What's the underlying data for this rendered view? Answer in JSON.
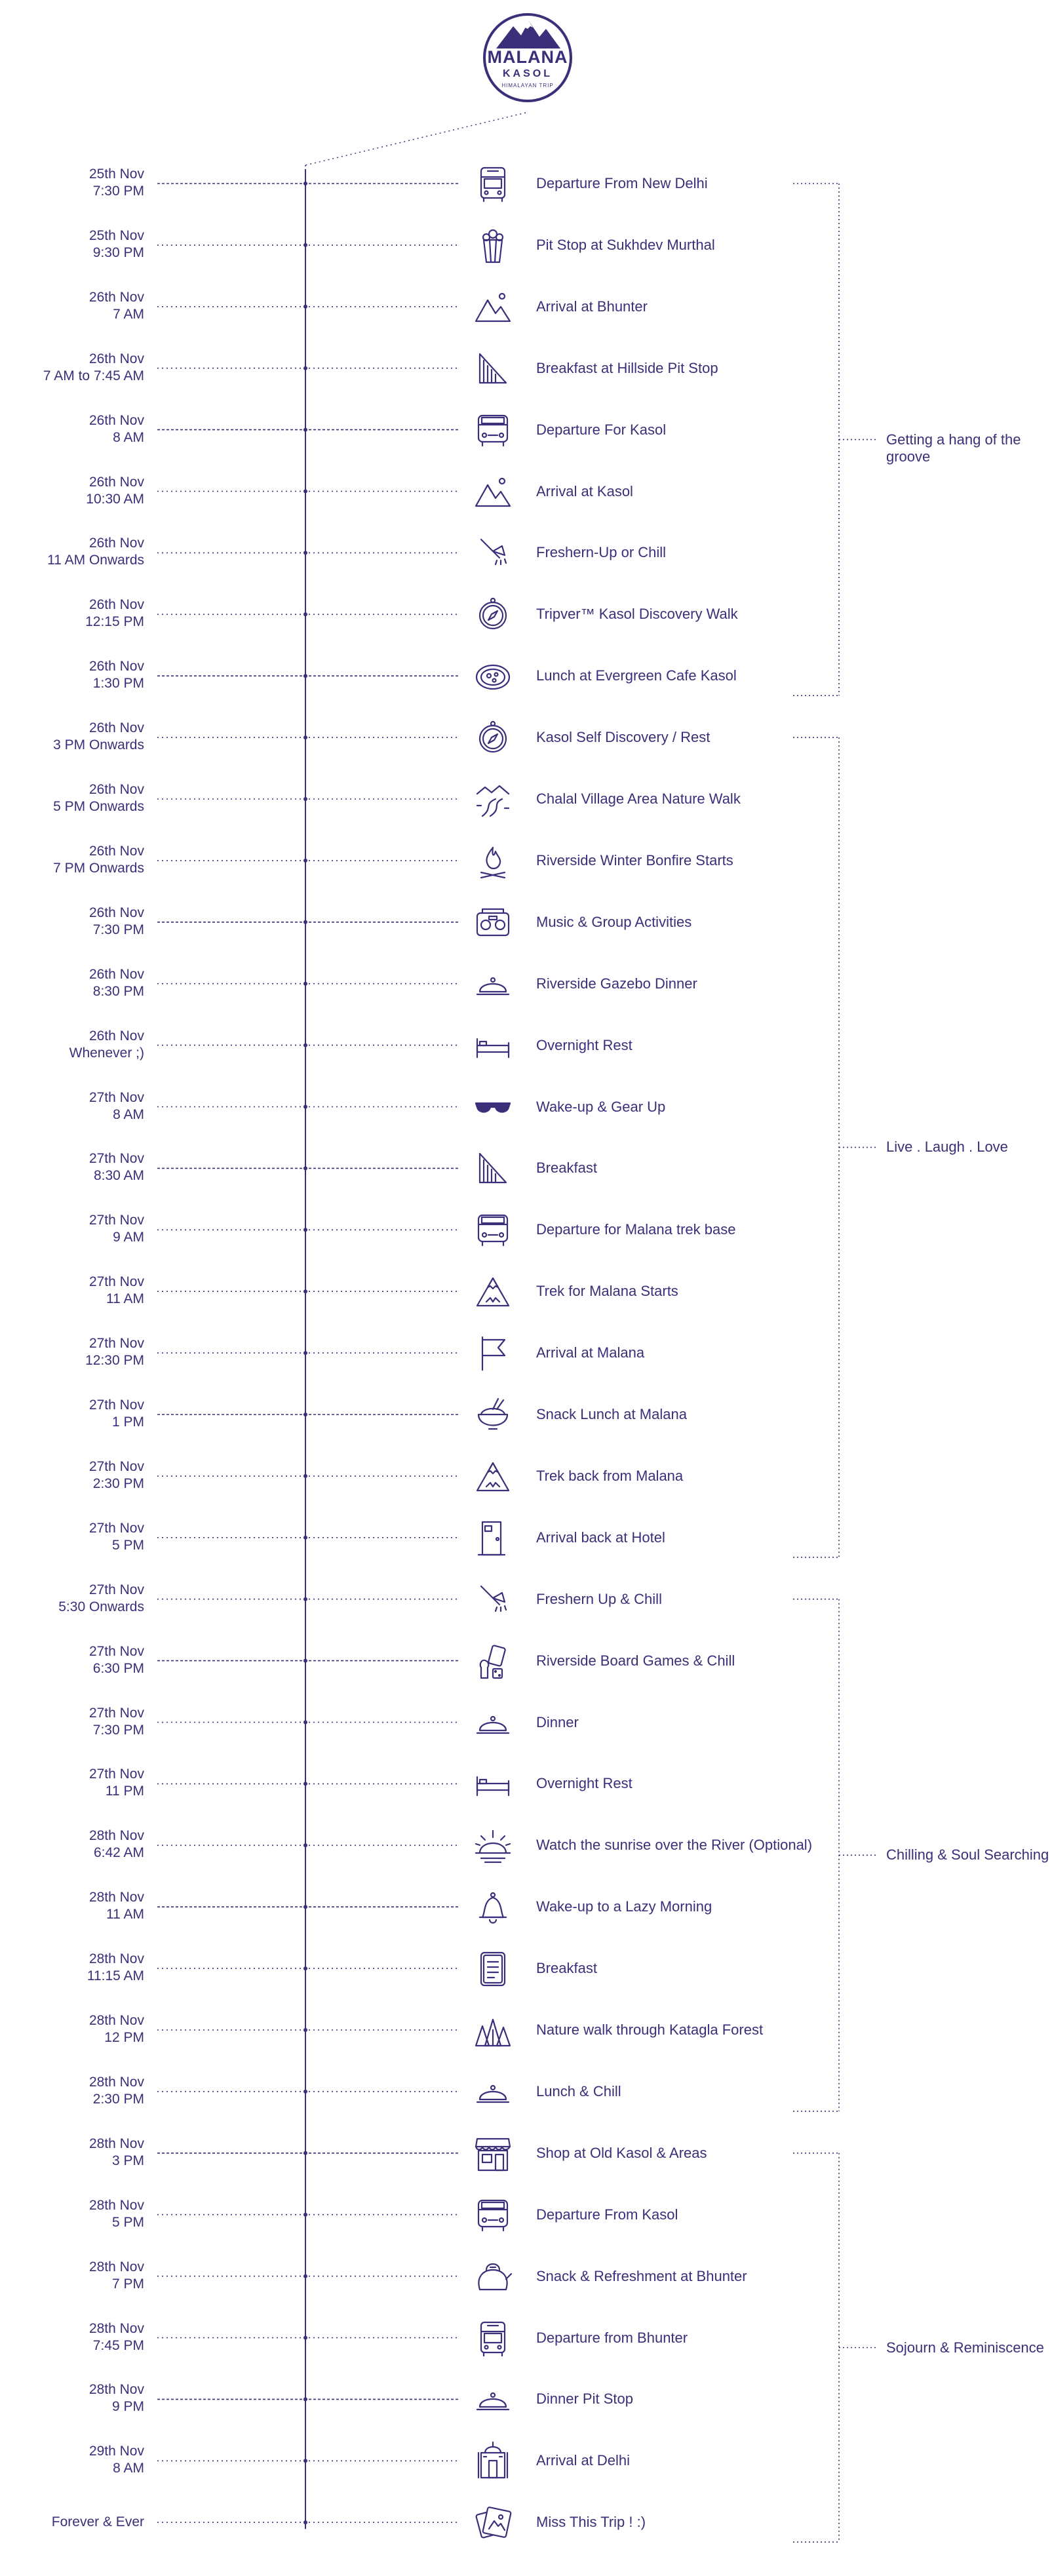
{
  "brand": {
    "title": "MALANA",
    "subtitle": "KASOL",
    "tagline": "HIMALAYAN TRIP",
    "color": "#3b2f7a"
  },
  "events": [
    {
      "date": "25th Nov",
      "time": "7:30 PM",
      "label": "Departure From New Delhi",
      "icon": "bus-icon"
    },
    {
      "date": "25th Nov",
      "time": "9:30 PM",
      "label": "Pit Stop at Sukhdev Murthal",
      "icon": "popcorn-icon"
    },
    {
      "date": "26th Nov",
      "time": "7 AM",
      "label": "Arrival at Bhunter",
      "icon": "mountains-icon"
    },
    {
      "date": "26th Nov",
      "time": "7 AM to 7:45 AM",
      "label": "Breakfast at Hillside Pit Stop",
      "icon": "sandwich-icon"
    },
    {
      "date": "26th Nov",
      "time": "8 AM",
      "label": "Departure For Kasol",
      "icon": "van-icon"
    },
    {
      "date": "26th Nov",
      "time": "10:30 AM",
      "label": "Arrival at Kasol",
      "icon": "mountains-icon"
    },
    {
      "date": "26th Nov",
      "time": "11 AM Onwards",
      "label": "Freshern-Up or Chill",
      "icon": "shower-icon"
    },
    {
      "date": "26th Nov",
      "time": "12:15 PM",
      "label": "Tripver™ Kasol Discovery Walk",
      "icon": "compass-icon"
    },
    {
      "date": "26th Nov",
      "time": "1:30 PM",
      "label": "Lunch at Evergreen Cafe Kasol",
      "icon": "pizza-icon"
    },
    {
      "date": "26th Nov",
      "time": "3 PM Onwards",
      "label": "Kasol Self Discovery / Rest",
      "icon": "compass-icon"
    },
    {
      "date": "26th Nov",
      "time": "5 PM Onwards",
      "label": "Chalal Village Area Nature Walk",
      "icon": "path-icon"
    },
    {
      "date": "26th Nov",
      "time": "7 PM Onwards",
      "label": "Riverside Winter Bonfire Starts",
      "icon": "bonfire-icon"
    },
    {
      "date": "26th Nov",
      "time": "7:30 PM",
      "label": "Music & Group Activities",
      "icon": "radio-icon"
    },
    {
      "date": "26th Nov",
      "time": "8:30 PM",
      "label": "Riverside Gazebo Dinner",
      "icon": "cloche-icon"
    },
    {
      "date": "26th Nov",
      "time": "Whenever ;)",
      "label": "Overnight Rest",
      "icon": "bed-icon"
    },
    {
      "date": "27th Nov",
      "time": "8 AM",
      "label": "Wake-up & Gear Up",
      "icon": "sunglasses-icon"
    },
    {
      "date": "27th Nov",
      "time": "8:30 AM",
      "label": "Breakfast",
      "icon": "sandwich-icon"
    },
    {
      "date": "27th Nov",
      "time": "9 AM",
      "label": "Departure for Malana  trek base",
      "icon": "van-icon"
    },
    {
      "date": "27th Nov",
      "time": "11 AM",
      "label": "Trek for Malana Starts",
      "icon": "peak-icon"
    },
    {
      "date": "27th Nov",
      "time": "12:30 PM",
      "label": "Arrival at Malana",
      "icon": "flag-icon"
    },
    {
      "date": "27th Nov",
      "time": "1 PM",
      "label": "Snack Lunch at Malana",
      "icon": "bowl-icon"
    },
    {
      "date": "27th Nov",
      "time": "2:30 PM",
      "label": "Trek back from Malana",
      "icon": "peak-icon"
    },
    {
      "date": "27th Nov",
      "time": "5 PM",
      "label": "Arrival back at Hotel",
      "icon": "door-icon"
    },
    {
      "date": "27th Nov",
      "time": "5:30 Onwards",
      "label": "Freshern Up & Chill",
      "icon": "shower-icon"
    },
    {
      "date": "27th Nov",
      "time": "6:30 PM",
      "label": "Riverside Board Games & Chill",
      "icon": "games-icon"
    },
    {
      "date": "27th Nov",
      "time": "7:30 PM",
      "label": "Dinner",
      "icon": "cloche-icon"
    },
    {
      "date": "27th Nov",
      "time": "11 PM",
      "label": "Overnight Rest",
      "icon": "bed-icon"
    },
    {
      "date": "28th Nov",
      "time": "6:42 AM",
      "label": "Watch the sunrise over the River (Optional)",
      "icon": "sunrise-icon"
    },
    {
      "date": "28th Nov",
      "time": "11 AM",
      "label": "Wake-up to a Lazy Morning",
      "icon": "bell-icon"
    },
    {
      "date": "28th Nov",
      "time": "11:15 AM",
      "label": "Breakfast",
      "icon": "menu-card-icon"
    },
    {
      "date": "28th Nov",
      "time": "12 PM",
      "label": "Nature walk through Katagla Forest",
      "icon": "forest-icon"
    },
    {
      "date": "28th Nov",
      "time": "2:30 PM",
      "label": "Lunch & Chill",
      "icon": "cloche-icon"
    },
    {
      "date": "28th Nov",
      "time": "3 PM",
      "label": "Shop at Old Kasol & Areas",
      "icon": "shop-icon"
    },
    {
      "date": "28th Nov",
      "time": "5 PM",
      "label": "Departure From Kasol",
      "icon": "van-icon"
    },
    {
      "date": "28th Nov",
      "time": "7 PM",
      "label": "Snack & Refreshment at Bhunter",
      "icon": "kettle-icon"
    },
    {
      "date": "28th Nov",
      "time": "7:45 PM",
      "label": "Departure from Bhunter",
      "icon": "bus-icon"
    },
    {
      "date": "28th Nov",
      "time": "9 PM",
      "label": "Dinner Pit Stop",
      "icon": "cloche-icon"
    },
    {
      "date": "29th Nov",
      "time": "8 AM",
      "label": "Arrival at Delhi",
      "icon": "monument-icon"
    },
    {
      "date": "",
      "time": "Forever & Ever",
      "label": "Miss This Trip ! :)",
      "icon": "photos-icon"
    }
  ],
  "phases": [
    {
      "label": "Getting a hang of the groove",
      "first": 0,
      "last": 8
    },
    {
      "label": "Live . Laugh . Love",
      "first": 9,
      "last": 22
    },
    {
      "label": "Chilling & Soul Searching",
      "first": 23,
      "last": 31
    },
    {
      "label": "Sojourn & Reminiscence",
      "first": 32,
      "last": 38
    }
  ]
}
